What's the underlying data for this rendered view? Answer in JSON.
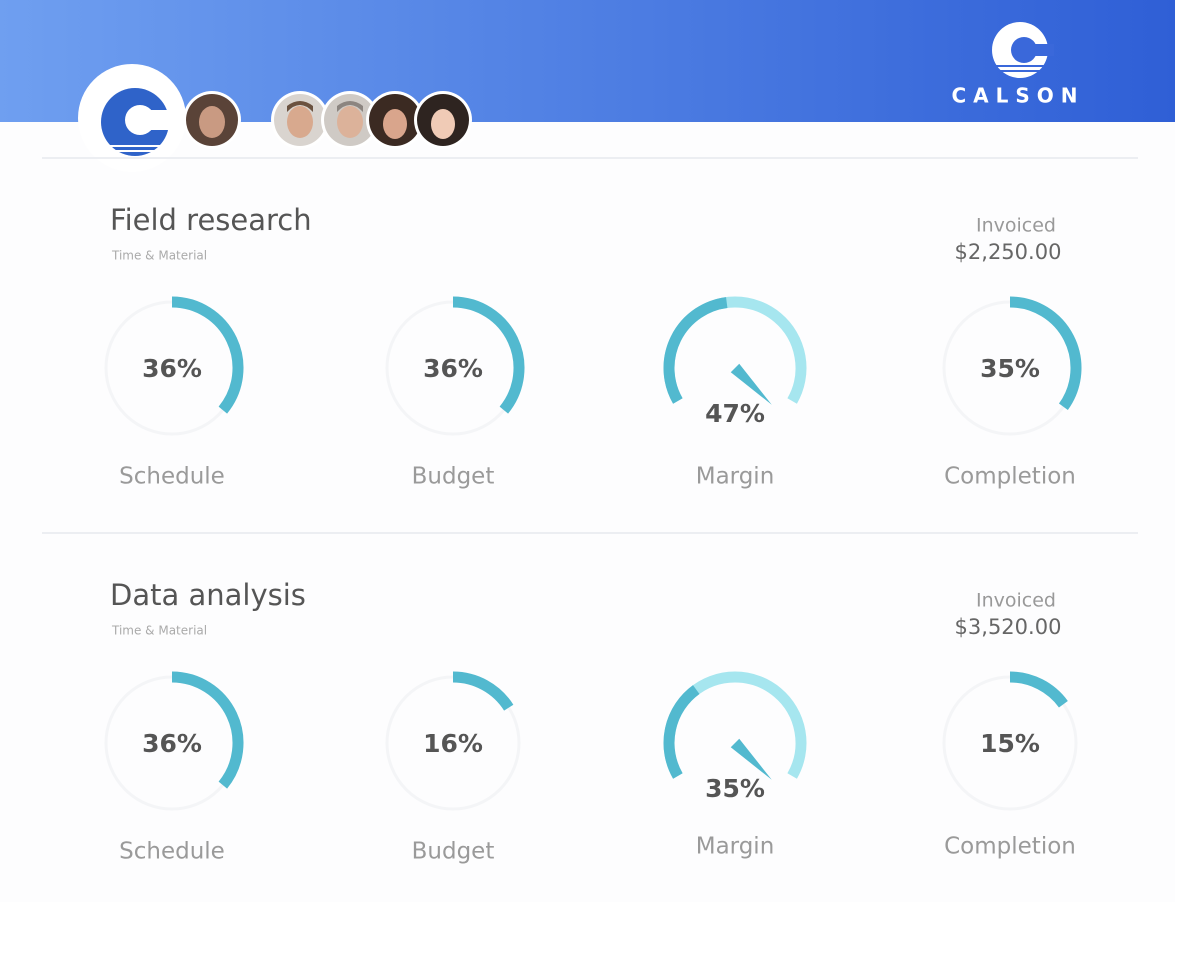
{
  "header": {
    "brand": "CALSON"
  },
  "projects": [
    {
      "title": "Field research",
      "subtitle": "Time & Material",
      "invoiced_label": "Invoiced",
      "invoiced_amount": "$2,250.00",
      "metrics": [
        {
          "name": "Schedule",
          "value": 36,
          "label": "36%"
        },
        {
          "name": "Budget",
          "value": 36,
          "label": "36%"
        },
        {
          "name": "Margin",
          "value": 47,
          "label": "47%"
        },
        {
          "name": "Completion",
          "value": 35,
          "label": "35%"
        }
      ]
    },
    {
      "title": "Data analysis",
      "subtitle": "Time & Material",
      "invoiced_label": "Invoiced",
      "invoiced_amount": "$3,520.00",
      "metrics": [
        {
          "name": "Schedule",
          "value": 36,
          "label": "36%"
        },
        {
          "name": "Budget",
          "value": 16,
          "label": "16%"
        },
        {
          "name": "Margin",
          "value": 35,
          "label": "35%"
        },
        {
          "name": "Completion",
          "value": 15,
          "label": "15%"
        }
      ]
    }
  ]
}
